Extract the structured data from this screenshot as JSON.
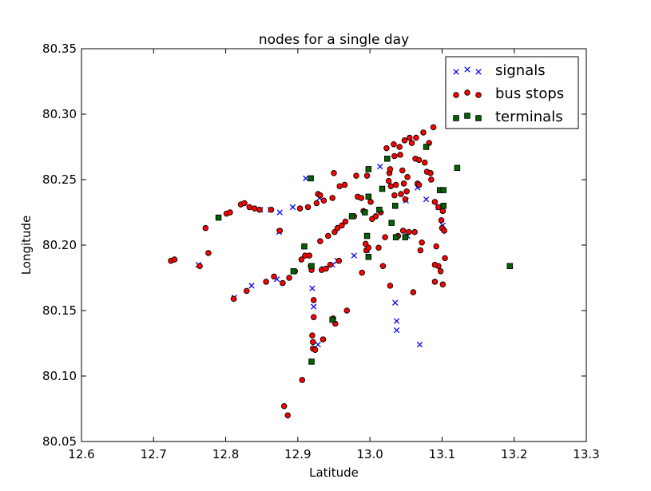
{
  "chart_data": {
    "type": "scatter",
    "title": "nodes for a single day",
    "xlabel": "Latitude",
    "ylabel": "Longitude",
    "xlim": [
      12.6,
      13.3
    ],
    "ylim": [
      80.05,
      80.35
    ],
    "x_ticks": [
      "12.6",
      "12.7",
      "12.8",
      "12.9",
      "13.0",
      "13.1",
      "13.2",
      "13.3"
    ],
    "y_ticks": [
      "80.05",
      "80.10",
      "80.15",
      "80.20",
      "80.25",
      "80.30",
      "80.35"
    ],
    "grid": false,
    "legend_position": "top-right",
    "series": [
      {
        "name": "signals",
        "marker": "x",
        "color": "#0000ff",
        "points": [
          [
            12.762,
            80.185
          ],
          [
            12.812,
            80.16
          ],
          [
            12.836,
            80.169
          ],
          [
            12.848,
            80.227
          ],
          [
            12.862,
            80.227
          ],
          [
            12.871,
            80.174
          ],
          [
            12.874,
            80.21
          ],
          [
            12.875,
            80.225
          ],
          [
            12.893,
            80.229
          ],
          [
            12.911,
            80.251
          ],
          [
            12.92,
            80.167
          ],
          [
            12.922,
            80.153
          ],
          [
            12.928,
            80.124
          ],
          [
            12.93,
            80.236
          ],
          [
            12.936,
            80.182
          ],
          [
            12.948,
            80.185
          ],
          [
            12.955,
            80.188
          ],
          [
            12.978,
            80.192
          ],
          [
            12.996,
            80.196
          ],
          [
            13.014,
            80.26
          ],
          [
            13.035,
            80.156
          ],
          [
            13.037,
            80.142
          ],
          [
            13.037,
            80.135
          ],
          [
            13.05,
            80.234
          ],
          [
            13.052,
            80.207
          ],
          [
            13.066,
            80.244
          ],
          [
            13.069,
            80.124
          ],
          [
            13.078,
            80.235
          ],
          [
            13.095,
            80.229
          ],
          [
            13.101,
            80.215
          ]
        ]
      },
      {
        "name": "bus stops",
        "marker": "o",
        "color": "#ff0000",
        "points": [
          [
            12.724,
            80.188
          ],
          [
            12.729,
            80.189
          ],
          [
            12.764,
            80.184
          ],
          [
            12.772,
            80.213
          ],
          [
            12.776,
            80.194
          ],
          [
            12.801,
            80.224
          ],
          [
            12.806,
            80.225
          ],
          [
            12.811,
            80.159
          ],
          [
            12.821,
            80.231
          ],
          [
            12.826,
            80.232
          ],
          [
            12.829,
            80.165
          ],
          [
            12.833,
            80.229
          ],
          [
            12.84,
            80.228
          ],
          [
            12.847,
            80.227
          ],
          [
            12.856,
            80.172
          ],
          [
            12.863,
            80.227
          ],
          [
            12.867,
            80.176
          ],
          [
            12.875,
            80.211
          ],
          [
            12.879,
            80.171
          ],
          [
            12.881,
            80.077
          ],
          [
            12.886,
            80.07
          ],
          [
            12.888,
            80.175
          ],
          [
            12.896,
            80.18
          ],
          [
            12.903,
            80.228
          ],
          [
            12.905,
            80.189
          ],
          [
            12.906,
            80.097
          ],
          [
            12.91,
            80.192
          ],
          [
            12.914,
            80.229
          ],
          [
            12.916,
            80.192
          ],
          [
            12.918,
            80.184
          ],
          [
            12.919,
            80.181
          ],
          [
            12.92,
            80.131
          ],
          [
            12.921,
            80.126
          ],
          [
            12.921,
            80.121
          ],
          [
            12.922,
            80.145
          ],
          [
            12.922,
            80.158
          ],
          [
            12.924,
            80.12
          ],
          [
            12.926,
            80.232
          ],
          [
            12.928,
            80.239
          ],
          [
            12.931,
            80.203
          ],
          [
            12.931,
            80.238
          ],
          [
            12.933,
            80.181
          ],
          [
            12.935,
            80.128
          ],
          [
            12.936,
            80.234
          ],
          [
            12.939,
            80.182
          ],
          [
            12.942,
            80.207
          ],
          [
            12.945,
            80.185
          ],
          [
            12.948,
            80.236
          ],
          [
            12.949,
            80.144
          ],
          [
            12.95,
            80.255
          ],
          [
            12.951,
            80.21
          ],
          [
            12.952,
            80.14
          ],
          [
            12.955,
            80.213
          ],
          [
            12.957,
            80.188
          ],
          [
            12.958,
            80.245
          ],
          [
            12.961,
            80.215
          ],
          [
            12.965,
            80.246
          ],
          [
            12.966,
            80.218
          ],
          [
            12.968,
            80.15
          ],
          [
            12.976,
            80.222
          ],
          [
            12.981,
            80.253
          ],
          [
            12.983,
            80.237
          ],
          [
            12.988,
            80.236
          ],
          [
            12.989,
            80.179
          ],
          [
            12.991,
            80.226
          ],
          [
            12.994,
            80.201
          ],
          [
            12.995,
            80.196
          ],
          [
            12.996,
            80.253
          ],
          [
            12.998,
            80.198
          ],
          [
            13.003,
            80.22
          ],
          [
            13.008,
            80.222
          ],
          [
            13.012,
            80.198
          ],
          [
            13.015,
            80.225
          ],
          [
            13.018,
            80.184
          ],
          [
            13.021,
            80.206
          ],
          [
            13.023,
            80.274
          ],
          [
            13.026,
            80.249
          ],
          [
            13.027,
            80.255
          ],
          [
            13.028,
            80.258
          ],
          [
            13.028,
            80.169
          ],
          [
            13.029,
            80.245
          ],
          [
            13.033,
            80.277
          ],
          [
            13.034,
            80.238
          ],
          [
            13.034,
            80.268
          ],
          [
            13.036,
            80.246
          ],
          [
            13.039,
            80.207
          ],
          [
            13.041,
            80.275
          ],
          [
            13.042,
            80.269
          ],
          [
            13.043,
            80.239
          ],
          [
            13.045,
            80.257
          ],
          [
            13.046,
            80.211
          ],
          [
            13.047,
            80.247
          ],
          [
            13.048,
            80.28
          ],
          [
            13.049,
            80.235
          ],
          [
            13.051,
            80.241
          ],
          [
            13.052,
            80.252
          ],
          [
            13.054,
            80.21
          ],
          [
            13.055,
            80.282
          ],
          [
            13.058,
            80.278
          ],
          [
            13.06,
            80.164
          ],
          [
            13.062,
            80.21
          ],
          [
            13.063,
            80.266
          ],
          [
            13.064,
            80.282
          ],
          [
            13.066,
            80.247
          ],
          [
            13.068,
            80.246
          ],
          [
            13.068,
            80.265
          ],
          [
            13.07,
            80.196
          ],
          [
            13.072,
            80.202
          ],
          [
            13.074,
            80.286
          ],
          [
            13.076,
            80.263
          ],
          [
            13.079,
            80.256
          ],
          [
            13.082,
            80.278
          ],
          [
            13.084,
            80.255
          ],
          [
            13.085,
            80.25
          ],
          [
            13.088,
            80.29
          ],
          [
            13.09,
            80.233
          ],
          [
            13.092,
            80.199
          ],
          [
            13.095,
            80.184
          ],
          [
            13.098,
            80.18
          ],
          [
            13.099,
            80.219
          ],
          [
            13.1,
            80.213
          ],
          [
            13.101,
            80.226
          ],
          [
            13.101,
            80.17
          ],
          [
            13.103,
            80.211
          ],
          [
            13.104,
            80.19
          ],
          [
            13.09,
            80.172
          ],
          [
            13.09,
            80.185
          ],
          [
            13.095,
            80.229
          ],
          [
            12.978,
            80.222
          ],
          [
            13.001,
            80.233
          ]
        ]
      },
      {
        "name": "terminals",
        "marker": "s",
        "color": "#006400",
        "points": [
          [
            12.79,
            80.221
          ],
          [
            12.894,
            80.18
          ],
          [
            12.909,
            80.199
          ],
          [
            12.918,
            80.251
          ],
          [
            12.919,
            80.184
          ],
          [
            12.919,
            80.111
          ],
          [
            12.948,
            80.143
          ],
          [
            12.975,
            80.222
          ],
          [
            12.993,
            80.225
          ],
          [
            12.996,
            80.207
          ],
          [
            12.998,
            80.191
          ],
          [
            12.998,
            80.237
          ],
          [
            12.998,
            80.258
          ],
          [
            13.013,
            80.227
          ],
          [
            13.017,
            80.243
          ],
          [
            13.024,
            80.266
          ],
          [
            13.03,
            80.217
          ],
          [
            13.035,
            80.23
          ],
          [
            13.036,
            80.206
          ],
          [
            13.049,
            80.206
          ],
          [
            13.078,
            80.275
          ],
          [
            13.097,
            80.242
          ],
          [
            13.102,
            80.242
          ],
          [
            13.102,
            80.23
          ],
          [
            13.121,
            80.259
          ],
          [
            13.194,
            80.184
          ]
        ]
      }
    ]
  }
}
